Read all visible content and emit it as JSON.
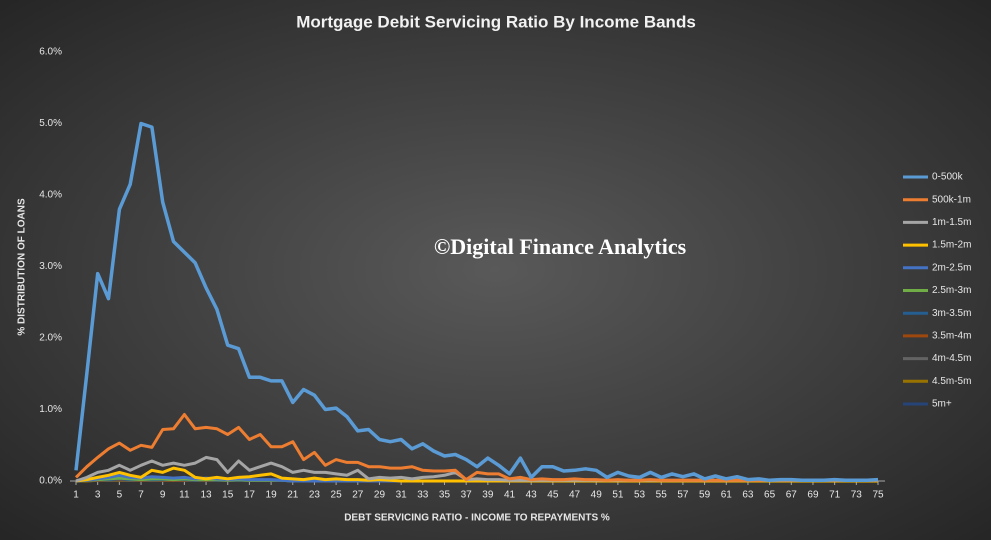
{
  "chart_data": {
    "type": "line",
    "title": "Mortgage  Debit  Servicing  Ratio  By  Income  Bands",
    "annotation": "©Digital Finance Analytics",
    "x_label": "DEBT SERVICING RATIO - INCOME TO  REPAYMENTS %",
    "y_label": "% DISTRIBUTION OF LOANS",
    "x": [
      1,
      2,
      3,
      4,
      5,
      6,
      7,
      8,
      9,
      10,
      11,
      12,
      13,
      14,
      15,
      16,
      17,
      18,
      19,
      20,
      21,
      22,
      23,
      24,
      25,
      26,
      27,
      28,
      29,
      30,
      31,
      32,
      33,
      34,
      35,
      36,
      37,
      38,
      39,
      40,
      41,
      42,
      43,
      44,
      45,
      46,
      47,
      48,
      49,
      50,
      51,
      52,
      53,
      54,
      55,
      56,
      57,
      58,
      59,
      60,
      61,
      62,
      63,
      64,
      65,
      66,
      67,
      68,
      69,
      70,
      71,
      72,
      73,
      74,
      75
    ],
    "xlim": [
      1,
      75
    ],
    "xticks": [
      1,
      3,
      5,
      7,
      9,
      11,
      13,
      15,
      17,
      19,
      21,
      23,
      25,
      27,
      29,
      31,
      33,
      35,
      37,
      39,
      41,
      43,
      45,
      47,
      49,
      51,
      53,
      55,
      57,
      59,
      61,
      63,
      65,
      67,
      69,
      71,
      73,
      75
    ],
    "ylim": [
      0,
      6
    ],
    "yticks": [
      {
        "value": 0,
        "label": "0.0%"
      },
      {
        "value": 1,
        "label": "1.0%"
      },
      {
        "value": 2,
        "label": "2.0%"
      },
      {
        "value": 3,
        "label": "3.0%"
      },
      {
        "value": 4,
        "label": "4.0%"
      },
      {
        "value": 5,
        "label": "5.0%"
      },
      {
        "value": 6,
        "label": "6.0%"
      }
    ],
    "grid": false,
    "legend": "right",
    "series": [
      {
        "name": "0-500k",
        "color": "#5b9bd5",
        "values": [
          0.15,
          1.5,
          2.9,
          2.55,
          3.8,
          4.15,
          5.0,
          4.95,
          3.9,
          3.35,
          3.2,
          3.05,
          2.7,
          2.4,
          1.9,
          1.85,
          1.45,
          1.45,
          1.4,
          1.4,
          1.1,
          1.28,
          1.2,
          1.0,
          1.02,
          0.9,
          0.7,
          0.72,
          0.58,
          0.55,
          0.58,
          0.45,
          0.52,
          0.42,
          0.35,
          0.37,
          0.3,
          0.2,
          0.32,
          0.22,
          0.1,
          0.32,
          0.05,
          0.2,
          0.2,
          0.14,
          0.15,
          0.17,
          0.15,
          0.05,
          0.12,
          0.07,
          0.05,
          0.12,
          0.05,
          0.1,
          0.06,
          0.1,
          0.03,
          0.07,
          0.03,
          0.06,
          0.02,
          0.03,
          0.01,
          0.02,
          0.02,
          0.01,
          0.01,
          0.01,
          0.02,
          0.01,
          0.01,
          0.01,
          0.02
        ]
      },
      {
        "name": "500k-1m",
        "color": "#ed7d31",
        "values": [
          0.05,
          0.2,
          0.33,
          0.45,
          0.53,
          0.43,
          0.5,
          0.47,
          0.72,
          0.73,
          0.93,
          0.73,
          0.75,
          0.73,
          0.65,
          0.75,
          0.58,
          0.65,
          0.48,
          0.48,
          0.55,
          0.3,
          0.4,
          0.22,
          0.3,
          0.26,
          0.26,
          0.2,
          0.2,
          0.18,
          0.18,
          0.2,
          0.15,
          0.14,
          0.14,
          0.15,
          0.02,
          0.12,
          0.1,
          0.1,
          0.03,
          0.05,
          0.02,
          0.03,
          0.02,
          0.02,
          0.03,
          0.02,
          0.02,
          0.01,
          0.02,
          0.01,
          0.01,
          0.02,
          0.01,
          0.01,
          0.01,
          0.01,
          0.01,
          0.01,
          0.01,
          0.01,
          0.01,
          0.01,
          0.01,
          0.01,
          0.01,
          0.01,
          0.01,
          0.01,
          0.01,
          0.01,
          0.01,
          0.01,
          0.01
        ]
      },
      {
        "name": "1m-1.5m",
        "color": "#a5a5a5",
        "values": [
          0,
          0.05,
          0.12,
          0.15,
          0.22,
          0.15,
          0.22,
          0.28,
          0.22,
          0.25,
          0.22,
          0.25,
          0.33,
          0.3,
          0.12,
          0.28,
          0.15,
          0.2,
          0.25,
          0.2,
          0.12,
          0.15,
          0.12,
          0.12,
          0.1,
          0.08,
          0.15,
          0.03,
          0.05,
          0.04,
          0.05,
          0.03,
          0.05,
          0.06,
          0.08,
          0.12,
          0.02,
          0.03,
          0.02,
          0.02,
          0.01,
          0.01,
          0.01,
          0.01,
          0.01,
          0.01,
          0.01,
          0.01,
          0.01,
          0.01,
          0.01,
          0.01,
          0.01,
          0.01,
          0.01,
          0.01,
          0.01,
          0.01,
          0.01,
          0.01,
          0.01,
          0.01,
          0.01,
          0.01,
          0.01,
          0.01,
          0.01,
          0.01,
          0.01,
          0.01,
          0.01,
          0.01,
          0.01,
          0.01,
          0.01
        ]
      },
      {
        "name": "1.5m-2m",
        "color": "#ffc000",
        "values": [
          0,
          0.02,
          0.05,
          0.08,
          0.12,
          0.08,
          0.05,
          0.15,
          0.12,
          0.18,
          0.15,
          0.05,
          0.03,
          0.05,
          0.03,
          0.05,
          0.06,
          0.08,
          0.1,
          0.04,
          0.03,
          0.02,
          0.04,
          0.02,
          0.03,
          0.02,
          0.02,
          0.01,
          0.02,
          0.01,
          0,
          0,
          0,
          0,
          0,
          0,
          0,
          0,
          0,
          0,
          0,
          0,
          0,
          0,
          0,
          0,
          0,
          0,
          0,
          0,
          0,
          0,
          0,
          0,
          0,
          0,
          0,
          0,
          0,
          0,
          0,
          0,
          0,
          0,
          0,
          0,
          0,
          0,
          0,
          0,
          0,
          0,
          0,
          0,
          0
        ]
      },
      {
        "name": "2m-2.5m",
        "color": "#4472c4",
        "values": [
          0,
          0.01,
          0.03,
          0.05,
          0.08,
          0.05,
          0.04,
          0.06,
          0.05,
          0.04,
          0.05,
          0.03,
          0.04,
          0.03,
          0.02,
          0.03,
          0.02,
          0.02,
          0.02,
          0.01,
          0,
          0,
          0,
          0,
          0,
          0,
          0,
          0,
          0,
          0,
          0,
          0,
          0,
          0,
          0,
          0,
          0,
          0,
          0,
          0,
          0,
          0,
          0,
          0,
          0,
          0,
          0,
          0,
          0,
          0,
          0,
          0,
          0,
          0,
          0,
          0,
          0,
          0,
          0,
          0,
          0,
          0,
          0,
          0,
          0,
          0,
          0,
          0,
          0,
          0,
          0,
          0,
          0,
          0,
          0
        ]
      },
      {
        "name": "2.5m-3m",
        "color": "#70ad47",
        "values": [
          0,
          0.01,
          0.02,
          0.03,
          0.04,
          0.03,
          0.02,
          0.03,
          0.03,
          0.02,
          0.03,
          0.02,
          0.02,
          0.02,
          0.01,
          0.02,
          0.01,
          0.01,
          0.01,
          0.01,
          0,
          0,
          0,
          0,
          0,
          0,
          0,
          0,
          0,
          0,
          0,
          0,
          0,
          0,
          0,
          0,
          0,
          0,
          0,
          0,
          0,
          0,
          0,
          0,
          0,
          0,
          0,
          0,
          0,
          0,
          0,
          0,
          0,
          0,
          0,
          0,
          0,
          0,
          0,
          0,
          0,
          0,
          0,
          0,
          0,
          0,
          0,
          0,
          0,
          0,
          0,
          0,
          0,
          0,
          0
        ]
      },
      {
        "name": "3m-3.5m",
        "color": "#255e91",
        "values": [
          0,
          0.01,
          0.02,
          0.02,
          0.03,
          0.02,
          0.02,
          0.02,
          0.02,
          0.02,
          0.02,
          0.01,
          0.02,
          0.01,
          0.01,
          0.01,
          0.01,
          0.01,
          0.01,
          0.01,
          0,
          0,
          0,
          0,
          0,
          0,
          0,
          0,
          0,
          0,
          0,
          0,
          0,
          0,
          0,
          0,
          0,
          0,
          0,
          0,
          0,
          0,
          0,
          0,
          0,
          0,
          0,
          0,
          0,
          0,
          0,
          0,
          0,
          0,
          0,
          0,
          0,
          0,
          0,
          0,
          0,
          0,
          0,
          0,
          0,
          0,
          0,
          0,
          0,
          0,
          0,
          0,
          0,
          0,
          0
        ]
      },
      {
        "name": "3.5m-4m",
        "color": "#9e480e",
        "values": [
          0,
          0.01,
          0.01,
          0.02,
          0.02,
          0.02,
          0.01,
          0.02,
          0.01,
          0.01,
          0.01,
          0.01,
          0.01,
          0.01,
          0.01,
          0.01,
          0.01,
          0.01,
          0.01,
          0.01,
          0,
          0,
          0,
          0,
          0,
          0,
          0,
          0,
          0,
          0,
          0,
          0,
          0,
          0,
          0,
          0,
          0,
          0,
          0,
          0,
          0,
          0,
          0,
          0,
          0,
          0,
          0,
          0,
          0,
          0,
          0,
          0,
          0,
          0,
          0,
          0,
          0,
          0,
          0,
          0,
          0,
          0,
          0,
          0,
          0,
          0,
          0,
          0,
          0,
          0,
          0,
          0,
          0,
          0,
          0
        ]
      },
      {
        "name": "4m-4.5m",
        "color": "#636363",
        "values": [
          0,
          0.01,
          0.01,
          0.01,
          0.02,
          0.01,
          0.01,
          0.01,
          0.01,
          0.01,
          0.01,
          0.01,
          0.01,
          0.01,
          0.01,
          0.01,
          0.01,
          0.01,
          0.01,
          0.01,
          0,
          0,
          0,
          0,
          0,
          0,
          0,
          0,
          0,
          0,
          0,
          0,
          0,
          0,
          0,
          0,
          0,
          0,
          0,
          0,
          0,
          0,
          0,
          0,
          0,
          0,
          0,
          0,
          0,
          0,
          0,
          0,
          0,
          0,
          0,
          0,
          0,
          0,
          0,
          0,
          0,
          0,
          0,
          0,
          0,
          0,
          0,
          0,
          0,
          0,
          0,
          0,
          0,
          0,
          0
        ]
      },
      {
        "name": "4.5m-5m",
        "color": "#997300",
        "values": [
          0,
          0,
          0.01,
          0.01,
          0.01,
          0.01,
          0.01,
          0.01,
          0.01,
          0.01,
          0.01,
          0.01,
          0.01,
          0.01,
          0.01,
          0.01,
          0.01,
          0.01,
          0.01,
          0.01,
          0,
          0,
          0,
          0,
          0,
          0,
          0,
          0,
          0,
          0,
          0,
          0,
          0,
          0,
          0,
          0,
          0,
          0,
          0,
          0,
          0,
          0,
          0,
          0,
          0,
          0,
          0,
          0,
          0,
          0,
          0,
          0,
          0,
          0,
          0,
          0,
          0,
          0,
          0,
          0,
          0,
          0,
          0,
          0,
          0,
          0,
          0,
          0,
          0,
          0,
          0,
          0,
          0,
          0,
          0
        ]
      },
      {
        "name": "5m+",
        "color": "#264478",
        "values": [
          0,
          0,
          0.01,
          0.01,
          0.01,
          0.01,
          0.01,
          0.01,
          0.01,
          0.01,
          0.01,
          0.01,
          0.01,
          0.01,
          0.01,
          0.01,
          0.01,
          0.01,
          0.01,
          0.01,
          0,
          0,
          0,
          0,
          0,
          0,
          0,
          0,
          0,
          0,
          0,
          0,
          0,
          0,
          0,
          0,
          0,
          0,
          0,
          0,
          0,
          0,
          0,
          0,
          0,
          0,
          0,
          0,
          0,
          0,
          0,
          0,
          0,
          0,
          0,
          0,
          0,
          0,
          0,
          0,
          0,
          0,
          0,
          0,
          0,
          0,
          0,
          0,
          0,
          0,
          0,
          0,
          0,
          0,
          0
        ]
      }
    ]
  }
}
